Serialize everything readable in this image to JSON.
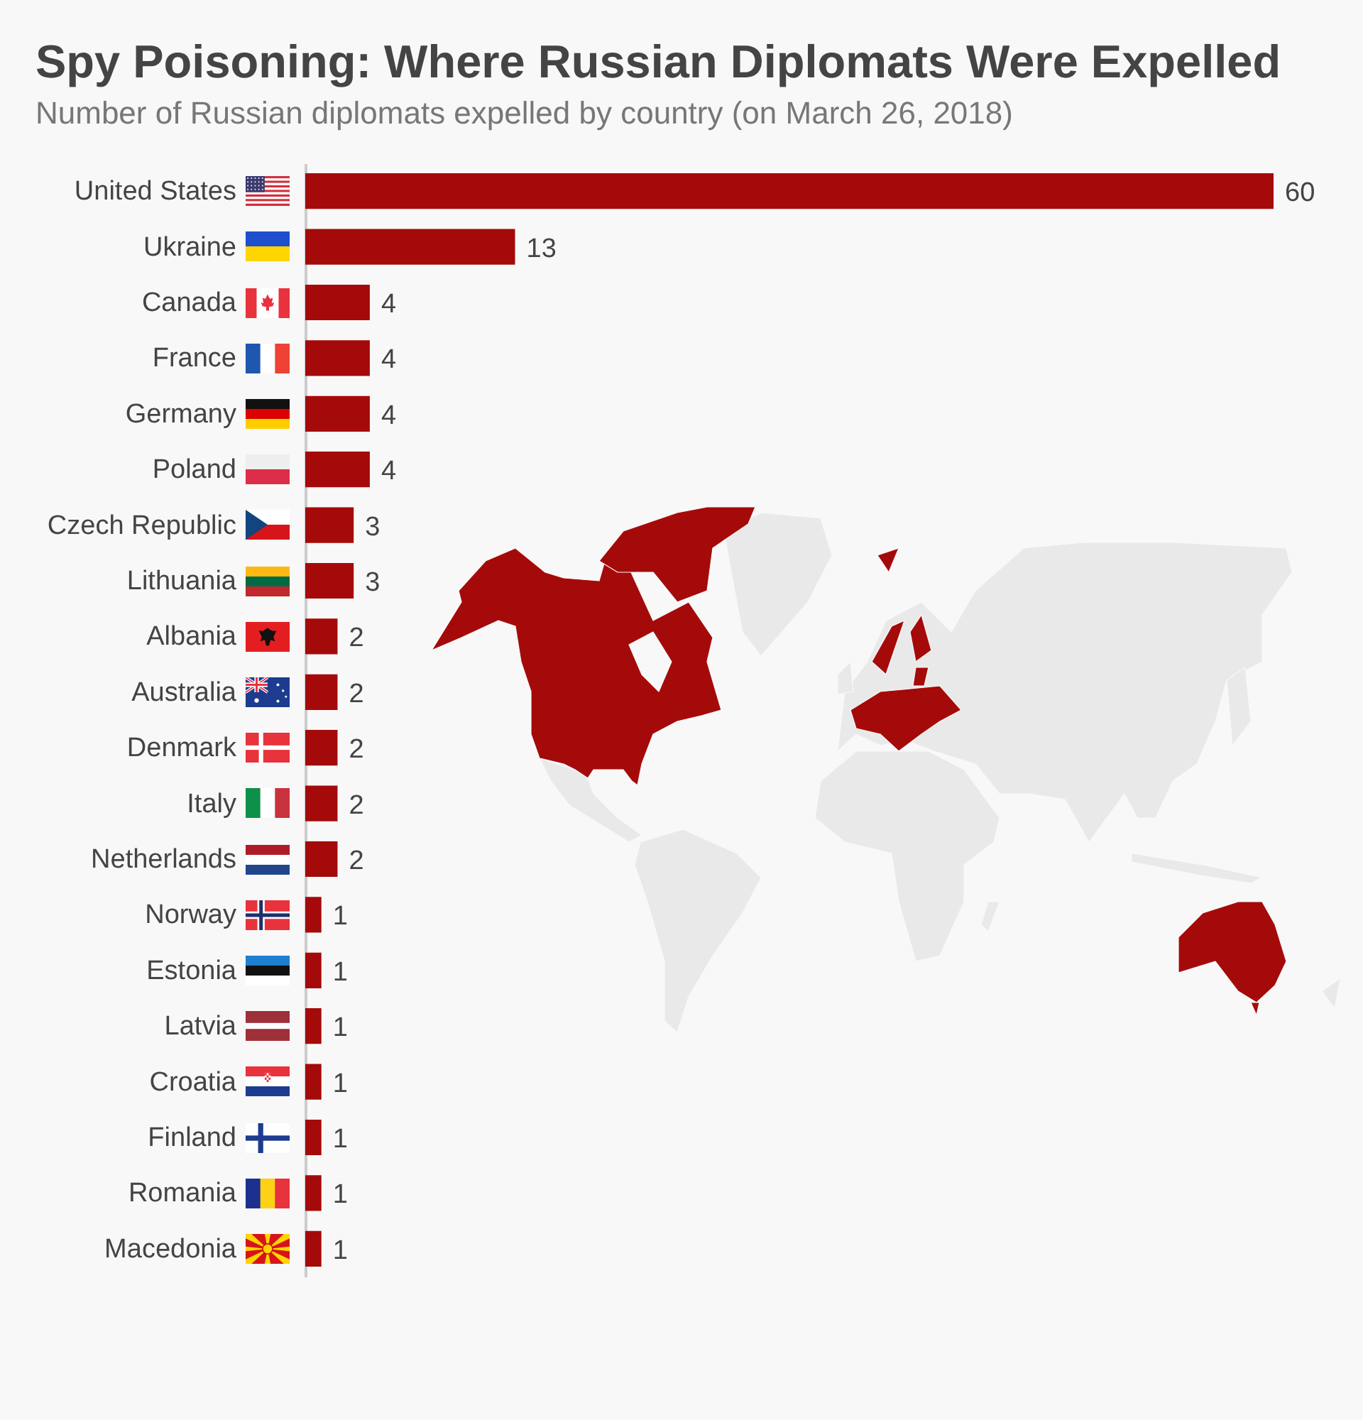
{
  "chart_data": {
    "type": "bar",
    "orientation": "horizontal",
    "title": "Spy Poisoning: Where Russian Diplomats Were Expelled",
    "subtitle": "Number of Russian diplomats expelled by country (on March 26, 2018)",
    "categories": [
      "United States",
      "Ukraine",
      "Canada",
      "France",
      "Germany",
      "Poland",
      "Czech Republic",
      "Lithuania",
      "Albania",
      "Australia",
      "Denmark",
      "Italy",
      "Netherlands",
      "Norway",
      "Estonia",
      "Latvia",
      "Croatia",
      "Finland",
      "Romania",
      "Macedonia"
    ],
    "values": [
      60,
      13,
      4,
      4,
      4,
      4,
      3,
      3,
      2,
      2,
      2,
      2,
      2,
      1,
      1,
      1,
      1,
      1,
      1,
      1
    ],
    "color": "#a50a0a",
    "data_labels": true
  }
}
